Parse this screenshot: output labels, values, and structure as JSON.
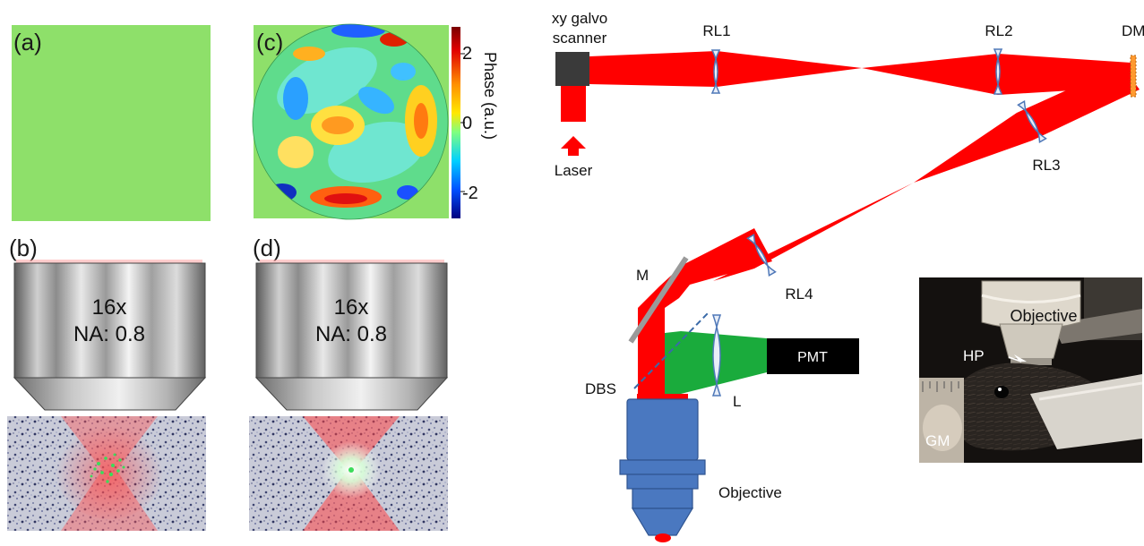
{
  "panels": {
    "a": {
      "letter": "(a)"
    },
    "b": {
      "letter": "(b)",
      "magnification": "16x",
      "na": "NA: 0.8"
    },
    "c": {
      "letter": "(c)"
    },
    "d": {
      "letter": "(d)",
      "magnification": "16x",
      "na": "NA: 0.8"
    }
  },
  "colorbar": {
    "label": "Phase (a.u.)",
    "ticks": [
      "2",
      "0",
      "-2"
    ]
  },
  "setup": {
    "galvo_line1": "xy galvo",
    "galvo_line2": "scanner",
    "laser": "Laser",
    "rl1": "RL1",
    "rl2": "RL2",
    "rl3": "RL3",
    "rl4": "RL4",
    "dm": "DM",
    "mirror": "M",
    "pmt": "PMT",
    "dbs": "DBS",
    "lens": "L",
    "objective": "Objective"
  },
  "photo": {
    "objective": "Objective",
    "hp": "HP",
    "gm": "GM"
  },
  "colors": {
    "beam": "#ff0000",
    "emission": "#1aab3c",
    "slm_flat": "#8ee06a",
    "objective_body": "#4a78c0",
    "lens_fill": "#e8eef8",
    "lens_stroke": "#4f78b8"
  }
}
